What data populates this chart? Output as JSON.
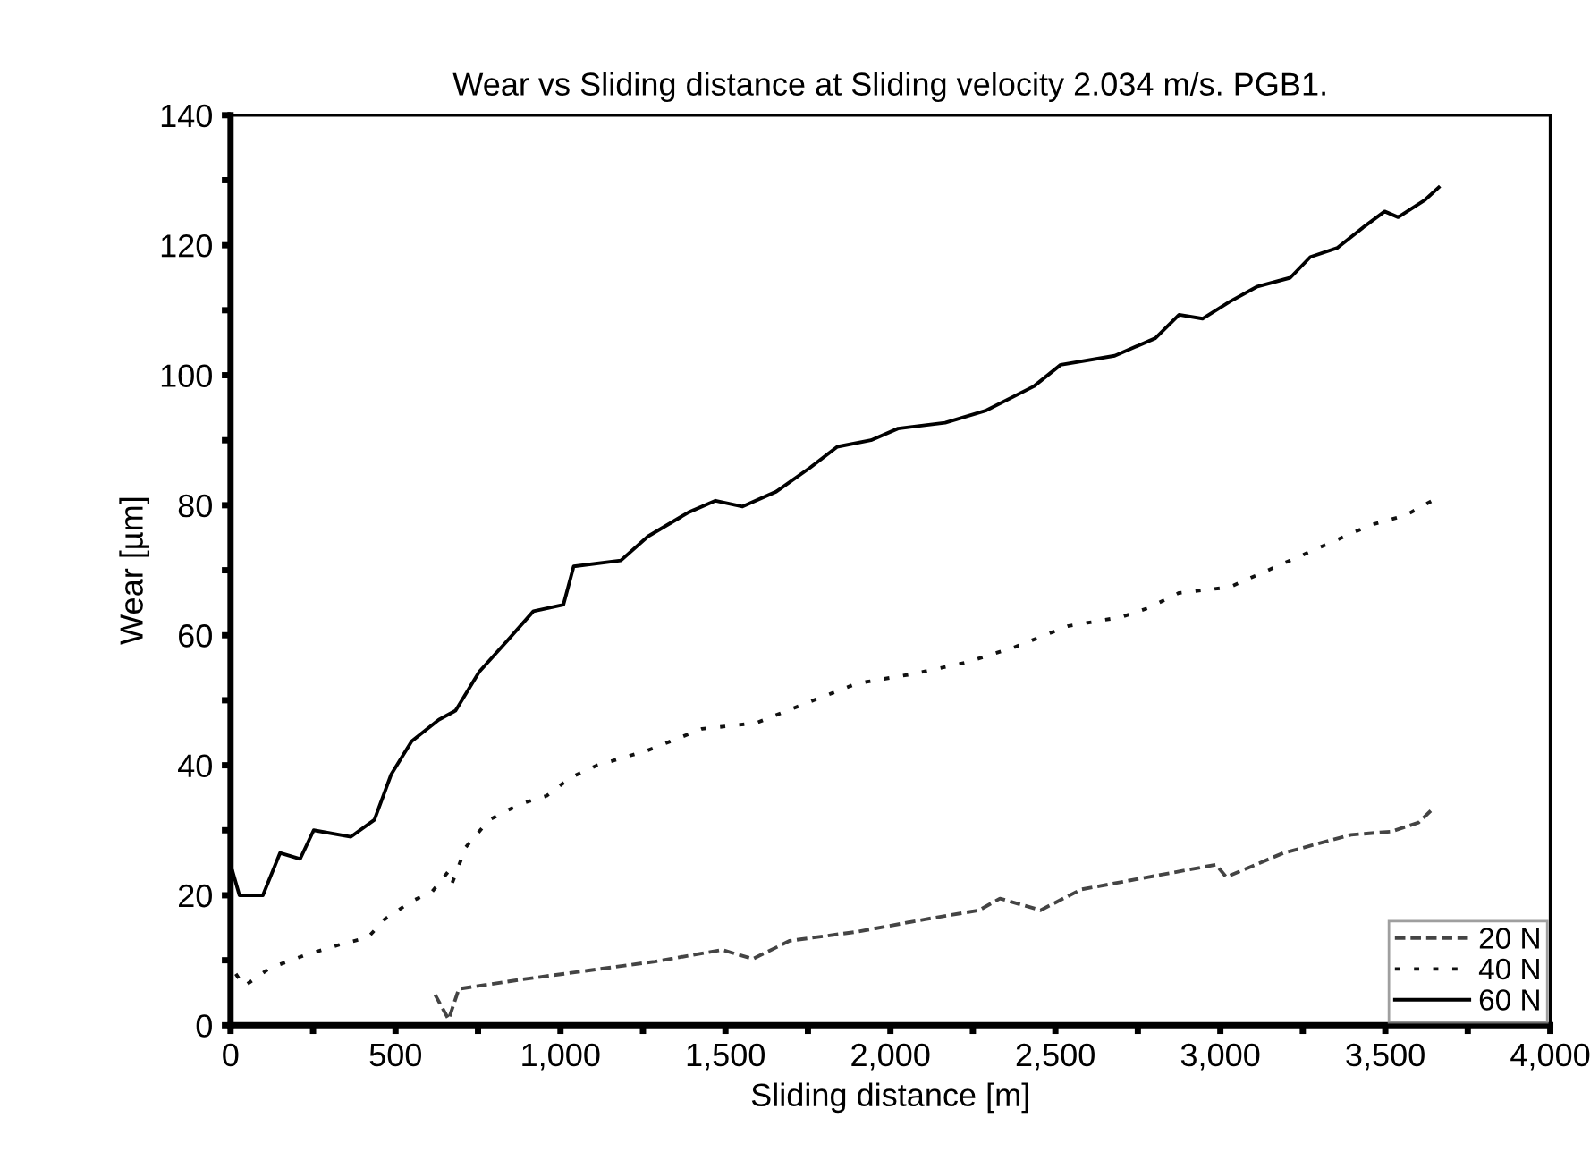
{
  "chart_data": {
    "type": "line",
    "title": "Wear vs Sliding distance at Sliding velocity 2.034 m/s. PGB1.",
    "xlabel": "Sliding distance [m]",
    "ylabel": "Wear [µm]",
    "xlim": [
      0,
      4000
    ],
    "ylim": [
      0,
      140
    ],
    "xticks": [
      0,
      {
        "value": 250,
        "label": null
      },
      500,
      {
        "value": 750,
        "label": null
      },
      {
        "value": 1000,
        "label": "1,000"
      },
      {
        "value": 1250,
        "label": null
      },
      {
        "value": 1500,
        "label": "1,500"
      },
      {
        "value": 1750,
        "label": null
      },
      {
        "value": 2000,
        "label": "2,000"
      },
      {
        "value": 2250,
        "label": null
      },
      {
        "value": 2500,
        "label": "2,500"
      },
      {
        "value": 2750,
        "label": null
      },
      {
        "value": 3000,
        "label": "3,000"
      },
      {
        "value": 3250,
        "label": null
      },
      {
        "value": 3500,
        "label": "3,500"
      },
      {
        "value": 3750,
        "label": null
      },
      {
        "value": 4000,
        "label": "4,000"
      }
    ],
    "yticks": [
      0,
      {
        "value": 10,
        "label": null
      },
      20,
      {
        "value": 30,
        "label": null
      },
      40,
      {
        "value": 50,
        "label": null
      },
      60,
      {
        "value": 70,
        "label": null
      },
      80,
      {
        "value": 90,
        "label": null
      },
      100,
      {
        "value": 110,
        "label": null
      },
      120,
      {
        "value": 130,
        "label": null
      },
      140
    ],
    "grid": false,
    "legend": "bottom right",
    "series": [
      {
        "name": "20 N",
        "color": "#444444",
        "line_style": "dashed",
        "x": [
          620,
          661,
          692,
          876,
          1081,
          1286,
          1490,
          1583,
          1695,
          1900,
          2105,
          2269,
          2332,
          2455,
          2578,
          2782,
          2987,
          3018,
          3191,
          3396,
          3519,
          3601,
          3642
        ],
        "values": [
          4.7,
          0.9,
          5.6,
          7,
          8.4,
          9.8,
          11.6,
          10.2,
          13,
          14.4,
          16.3,
          17.7,
          19.5,
          17.7,
          20.9,
          22.8,
          24.7,
          22.8,
          26.5,
          29.3,
          29.8,
          31.2,
          33.2
        ]
      },
      {
        "name": "40 N",
        "color": "#111111",
        "line_style": "dotted",
        "x": [
          16,
          41,
          119,
          221,
          344,
          416,
          467,
          549,
          610,
          661,
          672,
          713,
          784,
          876,
          958,
          1030,
          1112,
          1265,
          1429,
          1593,
          1757,
          1900,
          2064,
          2228,
          2373,
          2537,
          2700,
          2782,
          2874,
          3028,
          3171,
          3314,
          3457,
          3560,
          3642
        ],
        "values": [
          7.9,
          6,
          8.8,
          10.7,
          12.6,
          13.5,
          16.3,
          19.1,
          20.5,
          23.7,
          21.9,
          27.4,
          31.6,
          34,
          35.3,
          38.1,
          40,
          42.3,
          45.6,
          46.5,
          49.8,
          52.6,
          54,
          55.8,
          58.1,
          61.4,
          62.8,
          64.2,
          66.5,
          67.4,
          70.6,
          73.8,
          77,
          78.4,
          80.7
        ]
      },
      {
        "name": "60 N",
        "color": "#000000",
        "line_style": "solid",
        "x": [
          6,
          27,
          98,
          150,
          211,
          252,
          365,
          436,
          487,
          549,
          631,
          682,
          754,
          836,
          918,
          1009,
          1040,
          1183,
          1265,
          1388,
          1470,
          1552,
          1654,
          1757,
          1839,
          1941,
          2023,
          2166,
          2291,
          2435,
          2516,
          2680,
          2803,
          2875,
          2946,
          3028,
          3110,
          3212,
          3273,
          3355,
          3437,
          3498,
          3539,
          3621,
          3662
        ],
        "values": [
          23.7,
          20,
          20,
          26.5,
          25.6,
          30,
          29,
          31.6,
          38.6,
          43.7,
          47,
          48.4,
          54.4,
          59,
          63.7,
          64.7,
          70.6,
          71.5,
          75.2,
          78.9,
          80.7,
          79.8,
          82.1,
          85.8,
          89,
          90,
          91.8,
          92.7,
          94.6,
          98.3,
          101.6,
          103,
          105.7,
          109.3,
          108.7,
          111.3,
          113.6,
          115,
          118.2,
          119.6,
          122.9,
          125.2,
          124.3,
          127,
          128.9
        ]
      }
    ]
  }
}
